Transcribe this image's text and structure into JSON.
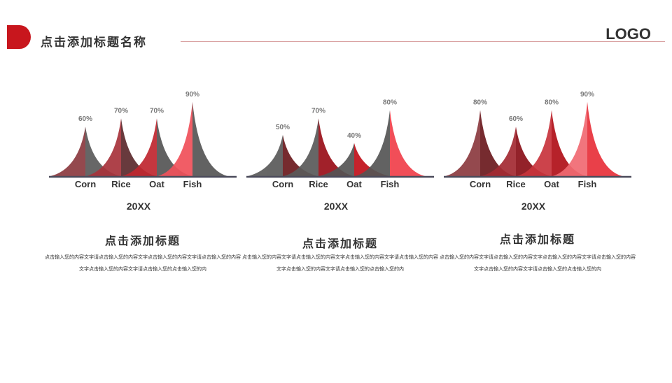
{
  "header": {
    "title": "点击添加标题名称",
    "logo": "LOGO",
    "accent_color": "#c8161d"
  },
  "panels": [
    {
      "title": "点击添加标题",
      "body": "点击输入您的内容文字请点击输入您的内容文字点击输入您的内容文字请点击输入您的内容文字点击输入您的内容文字请点击输入您的点击输入您的内"
    },
    {
      "title": "点击添加标题",
      "body": "点击输入您的内容文字请点击输入您的内容文字点击输入您的内容文字请点击输入您的内容文字点击输入您的内容文字请点击输入您的点击输入您的内"
    },
    {
      "title": "点击添加标题",
      "body": "点击输入您的内容文字请点击输入您的内容文字点击输入您的内容文字请点击输入您的内容文字点击输入您的内容文字请点击输入您的点击输入您的内"
    }
  ],
  "chart_data": [
    {
      "type": "area",
      "categories": [
        "Corn",
        "Rice",
        "Oat",
        "Fish"
      ],
      "values": [
        60,
        70,
        70,
        90
      ],
      "data_labels": [
        "60%",
        "70%",
        "70%",
        "90%"
      ],
      "xlabel": "20XX",
      "ylim": [
        0,
        100
      ],
      "colors": [
        [
          "#8b3a3f",
          "#5a5a5a"
        ],
        [
          "#a8323b",
          "#5c2a2d"
        ],
        [
          "#c0272f",
          "#555555"
        ],
        [
          "#f0505a",
          "#555555"
        ]
      ]
    },
    {
      "type": "area",
      "categories": [
        "Corn",
        "Rice",
        "Oat",
        "Fish"
      ],
      "values": [
        50,
        70,
        40,
        80
      ],
      "data_labels": [
        "50%",
        "70%",
        "40%",
        "80%"
      ],
      "xlabel": "20XX",
      "ylim": [
        0,
        100
      ],
      "colors": [
        [
          "#5a5a5a",
          "#6b1a1e"
        ],
        [
          "#5a5a5a",
          "#9a0f18"
        ],
        [
          "#555555",
          "#c0101a"
        ],
        [
          "#555555",
          "#f0404a"
        ]
      ]
    },
    {
      "type": "area",
      "categories": [
        "Corn",
        "Rice",
        "Oat",
        "Fish"
      ],
      "values": [
        80,
        60,
        80,
        90
      ],
      "data_labels": [
        "80%",
        "60%",
        "80%",
        "90%"
      ],
      "xlabel": "20XX",
      "ylim": [
        0,
        100
      ],
      "colors": [
        [
          "#8b3a3f",
          "#6b1a1e"
        ],
        [
          "#a32a33",
          "#8a1018"
        ],
        [
          "#c8343c",
          "#b01018"
        ],
        [
          "#f06a72",
          "#e8303a"
        ]
      ]
    }
  ]
}
